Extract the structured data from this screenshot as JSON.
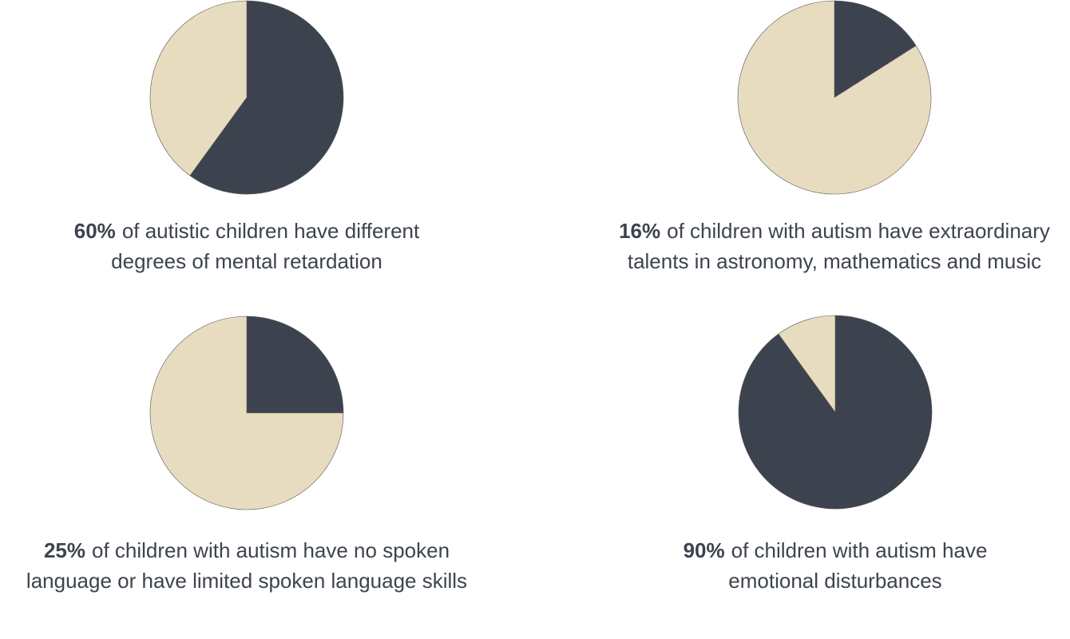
{
  "chart_data": [
    {
      "type": "pie",
      "values": [
        60,
        40
      ],
      "value_labels": [
        "60%",
        null
      ],
      "colors": [
        "#3d434e",
        "#e8dcc0"
      ],
      "caption_lines": [
        "of autistic children have different",
        "degrees of mental retardation"
      ]
    },
    {
      "type": "pie",
      "values": [
        16,
        84
      ],
      "value_labels": [
        "16%",
        null
      ],
      "colors": [
        "#3d434e",
        "#e8dcc0"
      ],
      "caption_lines": [
        "of children with autism have extraordinary",
        "talents in astronomy, mathematics and music"
      ]
    },
    {
      "type": "pie",
      "values": [
        25,
        75
      ],
      "value_labels": [
        "25%",
        null
      ],
      "colors": [
        "#3d434e",
        "#e8dcc0"
      ],
      "caption_lines": [
        "of children with autism have no spoken",
        "language or have limited spoken language skills"
      ]
    },
    {
      "type": "pie",
      "values": [
        90,
        10
      ],
      "value_labels": [
        "90%",
        null
      ],
      "colors": [
        "#3d434e",
        "#e8dcc0"
      ],
      "caption_lines": [
        "of children with autism have",
        "emotional disturbances"
      ]
    }
  ]
}
